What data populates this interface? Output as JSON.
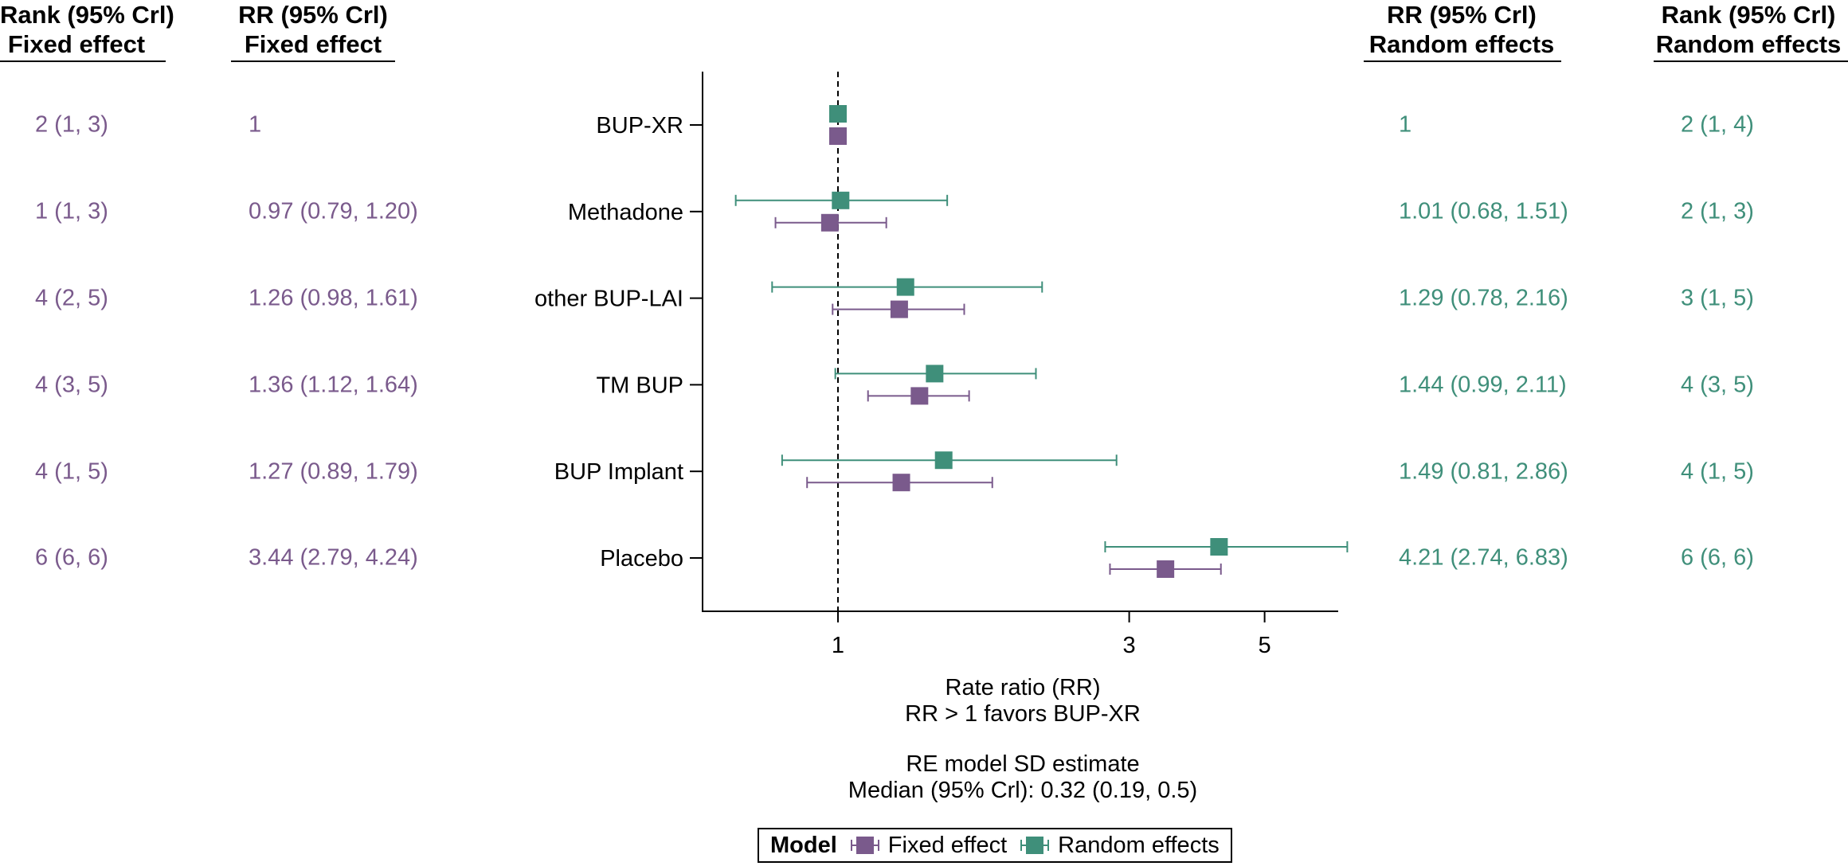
{
  "headers": {
    "rank_fe": [
      "Rank (95% Crl)",
      "Fixed effect"
    ],
    "rr_fe": [
      "RR (95% Crl)",
      "Fixed effect"
    ],
    "rr_re": [
      "RR (95% Crl)",
      "Random effects"
    ],
    "rank_re": [
      "Rank (95% Crl)",
      "Random effects"
    ]
  },
  "colors": {
    "fixed": "#7a5a8c",
    "random": "#3f8f7a"
  },
  "chart_data": {
    "type": "forest",
    "xscale": "log",
    "xlim": [
      0.6,
      6.6
    ],
    "xticks": [
      1,
      3,
      5
    ],
    "reference_line": 1,
    "categories": [
      "BUP-XR",
      "Methadone",
      "other BUP-LAI",
      "TM BUP",
      "BUP Implant",
      "Placebo"
    ],
    "series": [
      {
        "name": "Fixed effect",
        "estimates": [
          1,
          0.97,
          1.26,
          1.36,
          1.27,
          3.44
        ],
        "lower": [
          1,
          0.79,
          0.98,
          1.12,
          0.89,
          2.79
        ],
        "upper": [
          1,
          1.2,
          1.61,
          1.64,
          1.79,
          4.24
        ]
      },
      {
        "name": "Random effects",
        "estimates": [
          1,
          1.01,
          1.29,
          1.44,
          1.49,
          4.21
        ],
        "lower": [
          1,
          0.68,
          0.78,
          0.99,
          0.81,
          2.74
        ],
        "upper": [
          1,
          1.51,
          2.16,
          2.11,
          2.86,
          6.83
        ]
      }
    ],
    "xlabel": [
      "Rate ratio (RR)",
      "RR > 1 favors BUP-XR"
    ],
    "annotation": [
      "RE model SD estimate",
      "Median (95% Crl): 0.32 (0.19, 0.5)"
    ],
    "legend": {
      "title": "Model",
      "items": [
        "Fixed effect",
        "Random effects"
      ],
      "position": "bottom"
    }
  },
  "table": {
    "rank_fe": [
      "2 (1, 3)",
      "1 (1, 3)",
      "4 (2, 5)",
      "4 (3, 5)",
      "4 (1, 5)",
      "6 (6, 6)"
    ],
    "rr_fe": [
      "1",
      "0.97 (0.79, 1.20)",
      "1.26 (0.98, 1.61)",
      "1.36 (1.12, 1.64)",
      "1.27 (0.89, 1.79)",
      "3.44 (2.79, 4.24)"
    ],
    "rr_re": [
      "1",
      "1.01 (0.68, 1.51)",
      "1.29 (0.78, 2.16)",
      "1.44 (0.99, 2.11)",
      "1.49 (0.81, 2.86)",
      "4.21 (2.74, 6.83)"
    ],
    "rank_re": [
      "2 (1, 4)",
      "2 (1, 3)",
      "3 (1, 5)",
      "4 (3, 5)",
      "4 (1, 5)",
      "6 (6, 6)"
    ]
  }
}
